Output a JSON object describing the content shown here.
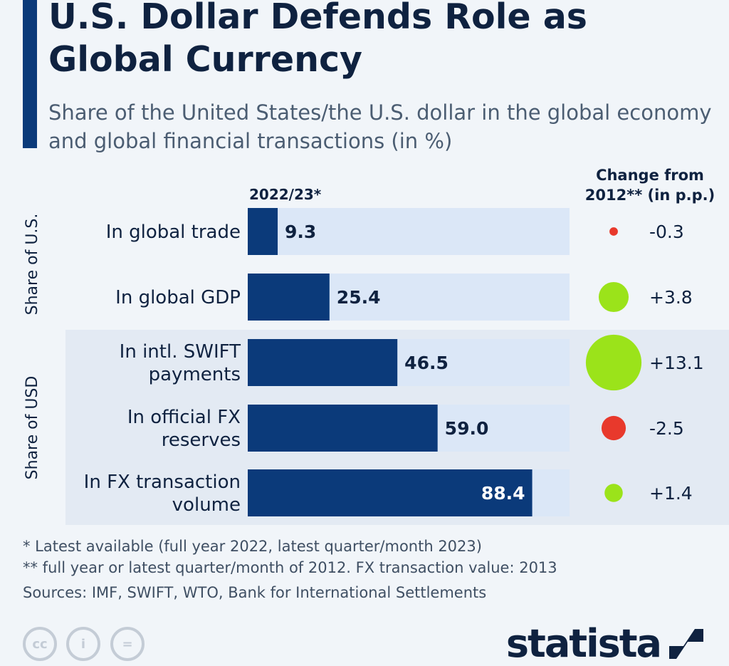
{
  "title": "U.S. Dollar Defends Role as Global Currency",
  "subtitle": "Share of the United States/the U.S. dollar in the global economy and global financial transactions (in %)",
  "footnotes": [
    "*   Latest available (full year 2022, latest quarter/month 2023)",
    "** full year or latest quarter/month of 2012. FX transaction value: 2013",
    "Sources: IMF, SWIFT, WTO, Bank for International Settlements"
  ],
  "logo": "statista",
  "colors": {
    "bar": "#0b3a7a",
    "track": "#dbe7f7",
    "positive": "#9be31a",
    "negative": "#e8392c",
    "group_shade": "#e3eaf3"
  },
  "chart_data": {
    "type": "bar",
    "column_header": "2022/23*",
    "change_header": [
      "Change from",
      "2012** (in p.p.)"
    ],
    "xlim": [
      0,
      100
    ],
    "groups": [
      {
        "label": "Share of U.S.",
        "rows": [
          0,
          1
        ]
      },
      {
        "label": "Share of USD",
        "rows": [
          2,
          3,
          4
        ]
      }
    ],
    "categories": [
      [
        "In global trade"
      ],
      [
        "In global GDP"
      ],
      [
        "In intl. SWIFT",
        "payments"
      ],
      [
        "In official FX",
        "reserves"
      ],
      [
        "In FX transaction",
        "volume"
      ]
    ],
    "values": [
      9.3,
      25.4,
      46.5,
      59.0,
      88.4
    ],
    "value_labels": [
      "9.3",
      "25.4",
      "46.5",
      "59.0",
      "88.4"
    ],
    "change": [
      -0.3,
      3.8,
      13.1,
      -2.5,
      1.4
    ],
    "change_labels": [
      "-0.3",
      "+3.8",
      "+13.1",
      "-2.5",
      "+1.4"
    ]
  }
}
